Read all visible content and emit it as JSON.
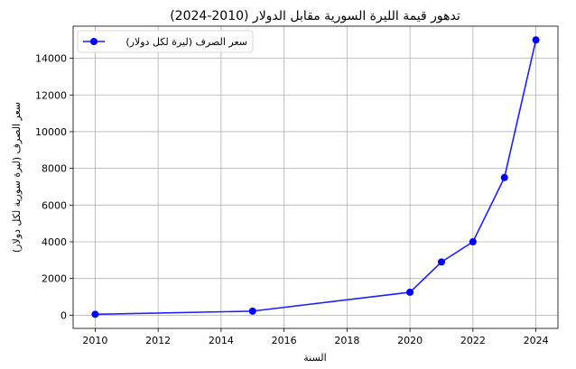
{
  "chart_data": {
    "type": "line",
    "title": "تدهور قيمة الليرة السورية مقابل الدولار (2010-2024)",
    "xlabel": "السنة",
    "ylabel": "سعر الصرف (ليرة سورية لكل دولار)",
    "xlim": [
      2009.3,
      2024.7
    ],
    "ylim": [
      -720,
      15750
    ],
    "xticks": [
      2010,
      2012,
      2014,
      2016,
      2018,
      2020,
      2022,
      2024
    ],
    "yticks": [
      0,
      2000,
      4000,
      6000,
      8000,
      10000,
      12000,
      14000
    ],
    "grid": true,
    "legend_position": "top-left",
    "series": [
      {
        "name": "سعر الصرف (ليرة لكل دولار)",
        "color": "#0000ff",
        "x": [
          2010,
          2015,
          2020,
          2021,
          2022,
          2023,
          2024
        ],
        "y": [
          50,
          220,
          1250,
          2900,
          4000,
          7500,
          15000
        ]
      }
    ]
  }
}
